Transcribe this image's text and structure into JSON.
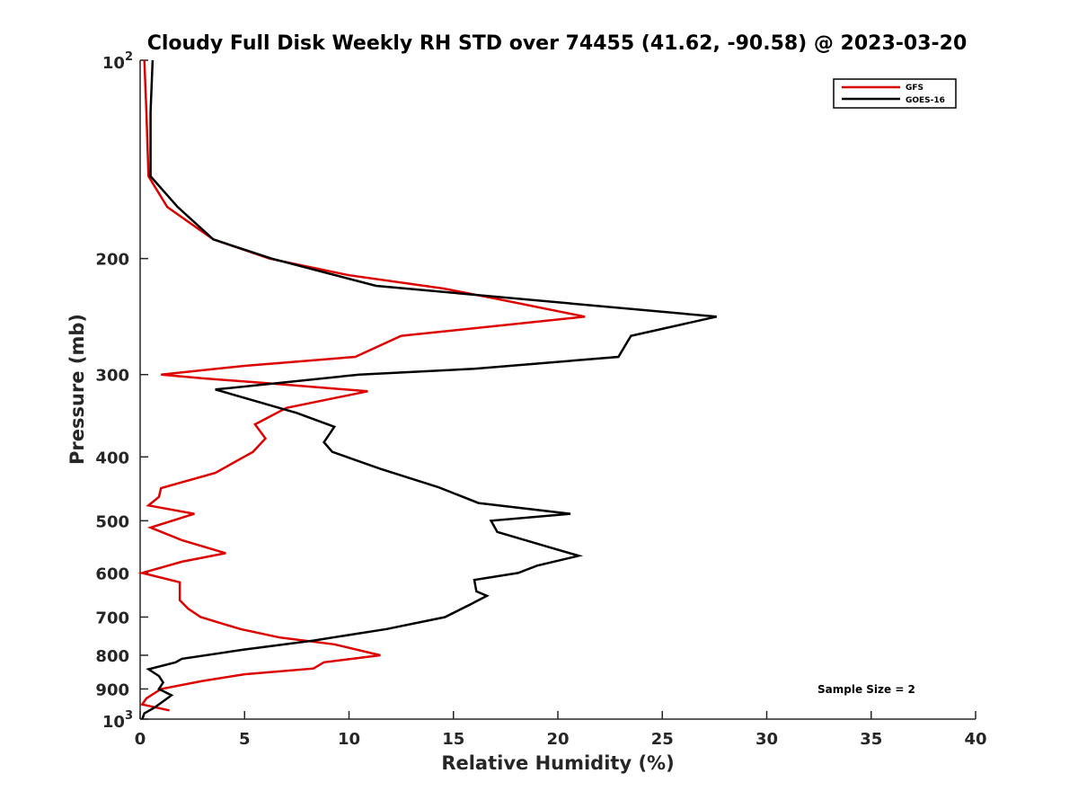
{
  "chart_data": {
    "type": "line",
    "title": "Cloudy Full Disk Weekly RH STD over 74455 (41.62, -90.58) @ 2023-03-20",
    "xlabel": "Relative Humidity (%)",
    "ylabel": "Pressure (mb)",
    "xlim": [
      0,
      40
    ],
    "ylim": [
      100,
      1000
    ],
    "yscale": "log",
    "y_reversed": true,
    "x_ticks": [
      "0",
      "5",
      "10",
      "15",
      "20",
      "25",
      "30",
      "35",
      "40"
    ],
    "y_ticks": [
      {
        "value": 100,
        "label": "10",
        "sup": "2"
      },
      {
        "value": 200,
        "label": "200"
      },
      {
        "value": 300,
        "label": "300"
      },
      {
        "value": 400,
        "label": "400"
      },
      {
        "value": 500,
        "label": "500"
      },
      {
        "value": 600,
        "label": "600"
      },
      {
        "value": 700,
        "label": "700"
      },
      {
        "value": 800,
        "label": "800"
      },
      {
        "value": 900,
        "label": "900"
      },
      {
        "value": 1000,
        "label": "10",
        "sup": "3"
      }
    ],
    "legend_position": "top-right",
    "grid": false,
    "annotation": "Sample Size = 2",
    "series": [
      {
        "name": "GFS",
        "color": "#dd0000",
        "points": [
          [
            0.2,
            100
          ],
          [
            0.3,
            120
          ],
          [
            0.4,
            150
          ],
          [
            1.3,
            167
          ],
          [
            3.5,
            187
          ],
          [
            6.2,
            200
          ],
          [
            10,
            212
          ],
          [
            14.5,
            222
          ],
          [
            17,
            230
          ],
          [
            21.3,
            245
          ],
          [
            12.5,
            262
          ],
          [
            10.3,
            282
          ],
          [
            5,
            291
          ],
          [
            1,
            300
          ],
          [
            3,
            304
          ],
          [
            6,
            309
          ],
          [
            10.9,
            318
          ],
          [
            7,
            337
          ],
          [
            5.5,
            357
          ],
          [
            6,
            375
          ],
          [
            5.4,
            393
          ],
          [
            3.6,
            423
          ],
          [
            1.0,
            446
          ],
          [
            0.9,
            460
          ],
          [
            0.4,
            474
          ],
          [
            2.6,
            488
          ],
          [
            0.5,
            512
          ],
          [
            2.0,
            535
          ],
          [
            4.1,
            560
          ],
          [
            2.0,
            577
          ],
          [
            0.1,
            600
          ],
          [
            1.9,
            620
          ],
          [
            1.9,
            640
          ],
          [
            1.9,
            660
          ],
          [
            2.3,
            680
          ],
          [
            2.9,
            700
          ],
          [
            4.8,
            730
          ],
          [
            6.7,
            752
          ],
          [
            9.3,
            770
          ],
          [
            11.5,
            800
          ],
          [
            8.8,
            820
          ],
          [
            8.3,
            838
          ],
          [
            5.0,
            855
          ],
          [
            3.0,
            875
          ],
          [
            1.0,
            900
          ],
          [
            0.3,
            930
          ],
          [
            0.1,
            950
          ],
          [
            1.4,
            970
          ]
        ]
      },
      {
        "name": "GOES-16",
        "color": "#000000",
        "points": [
          [
            0.6,
            100
          ],
          [
            0.5,
            120
          ],
          [
            0.5,
            150
          ],
          [
            1.8,
            167
          ],
          [
            3.5,
            187
          ],
          [
            6.3,
            200
          ],
          [
            11.3,
            220
          ],
          [
            27.6,
            245
          ],
          [
            23.5,
            262
          ],
          [
            22.9,
            282
          ],
          [
            16,
            294
          ],
          [
            10.5,
            300
          ],
          [
            3.6,
            316
          ],
          [
            7.5,
            343
          ],
          [
            9.3,
            360
          ],
          [
            8.8,
            380
          ],
          [
            9.2,
            393
          ],
          [
            11.5,
            417
          ],
          [
            14.3,
            445
          ],
          [
            16.2,
            470
          ],
          [
            20.6,
            488
          ],
          [
            16.8,
            500
          ],
          [
            17.1,
            520
          ],
          [
            19.3,
            545
          ],
          [
            21.0,
            565
          ],
          [
            19.0,
            585
          ],
          [
            18.1,
            600
          ],
          [
            16.0,
            615
          ],
          [
            16.1,
            640
          ],
          [
            16.6,
            650
          ],
          [
            15.8,
            670
          ],
          [
            14.6,
            700
          ],
          [
            11.8,
            730
          ],
          [
            8.3,
            760
          ],
          [
            4.9,
            785
          ],
          [
            2.0,
            810
          ],
          [
            1.7,
            820
          ],
          [
            0.4,
            840
          ],
          [
            0.9,
            860
          ],
          [
            1.1,
            880
          ],
          [
            0.9,
            900
          ],
          [
            1.5,
            920
          ],
          [
            1.1,
            940
          ],
          [
            0.7,
            960
          ],
          [
            0.2,
            980
          ],
          [
            0.1,
            1000
          ]
        ]
      }
    ]
  }
}
